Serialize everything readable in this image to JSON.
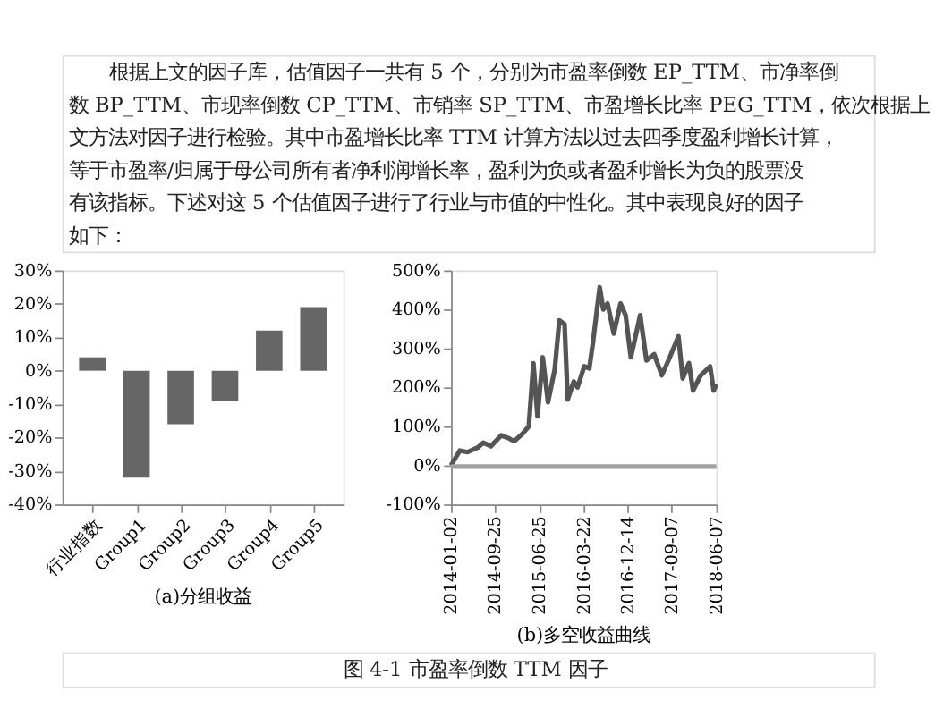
{
  "chart_data": [
    {
      "type": "bar",
      "title": "(a)分组收益",
      "annotations": [
        "根据上文的因子库，估值因子一共有 5 个，分别为市盈率倒数 EP_TTM、市净率倒",
        "数 BP_TTM、市现率倒数 CP_TTM、市销率 SP_TTM、市盈增长比率 PEG_TTM，依次根据上",
        "文方法对因子进行检验。其中市盈增长比率 TTM 计算方法以过去四季度盈利增长计算，",
        "等于市盈率/归属于母公司所有者净利润增长率，盈利为负或者盈利增长为负的股票没",
        "有该指标。下述对这 5 个估值因子进行了行业与市值的中性化。其中表现良好的因子",
        "如下："
      ],
      "categories": [
        "行业指数",
        "Group1",
        "Group2",
        "Group3",
        "Group4",
        "Group5"
      ],
      "values": [
        4,
        -32,
        -16,
        -9,
        12,
        19
      ],
      "color": "#666666",
      "ylim": [
        -40,
        30
      ],
      "yticks": [
        {
          "value": -40,
          "label": "-40%"
        },
        {
          "value": -30,
          "label": "-30%"
        },
        {
          "value": -20,
          "label": "-20%"
        },
        {
          "value": -10,
          "label": "-10%"
        },
        {
          "value": 0,
          "label": "0%"
        },
        {
          "value": 10,
          "label": "10%"
        },
        {
          "value": 20,
          "label": "20%"
        },
        {
          "value": 30,
          "label": "30%"
        }
      ],
      "grid": false
    },
    {
      "type": "line",
      "title": "(b)多空收益曲线",
      "annotations": [
        "图 4-1 市盈率倒数 TTM 因子"
      ],
      "xlim": [
        "2014-01-02",
        "2018-06-07"
      ],
      "xticks": [
        "2014-01-02",
        "2014-09-25",
        "2015-06-25",
        "2016-03-22",
        "2016-12-14",
        "2017-09-07",
        "2018-06-07"
      ],
      "ylim": [
        -100,
        500
      ],
      "yticks": [
        {
          "value": -100,
          "label": "-100%"
        },
        {
          "value": 0,
          "label": "0%"
        },
        {
          "value": 100,
          "label": "100%"
        },
        {
          "value": 200,
          "label": "200%"
        },
        {
          "value": 300,
          "label": "300%"
        },
        {
          "value": 400,
          "label": "400%"
        },
        {
          "value": 500,
          "label": "500%"
        }
      ],
      "grid": false,
      "marker": "none",
      "line_style": "solid",
      "series": [
        {
          "color": "#555555",
          "x": [
            "2014-01-02",
            "2014-02-25",
            "2014-04-13",
            "2014-06-15",
            "2014-07-17",
            "2014-09-02",
            "2014-11-04",
            "2014-12-22",
            "2015-01-22",
            "2015-03-11",
            "2015-04-21",
            "2015-05-19",
            "2015-06-13",
            "2015-07-15",
            "2015-08-16",
            "2015-09-26",
            "2015-10-24",
            "2015-11-25",
            "2015-12-14",
            "2016-01-20",
            "2016-02-12",
            "2016-03-24",
            "2016-04-24",
            "2016-05-16",
            "2016-06-26",
            "2016-07-18",
            "2016-08-13",
            "2016-09-20",
            "2016-10-31",
            "2016-12-01",
            "2017-01-02",
            "2017-02-28",
            "2017-04-07",
            "2017-05-24",
            "2017-07-10",
            "2017-08-27",
            "2017-10-19",
            "2017-11-14",
            "2017-12-22",
            "2018-01-16",
            "2018-03-04",
            "2018-04-30",
            "2018-05-22",
            "2018-06-07"
          ],
          "values": [
            0,
            38,
            34,
            46,
            58,
            49,
            77,
            69,
            62,
            80,
            100,
            262,
            126,
            277,
            162,
            246,
            372,
            362,
            169,
            215,
            200,
            254,
            249,
            315,
            457,
            400,
            415,
            338,
            415,
            385,
            277,
            385,
            269,
            285,
            231,
            277,
            331,
            223,
            262,
            192,
            231,
            254,
            192,
            208
          ]
        },
        {
          "color": "#a0a0a0",
          "x": [
            "2014-01-02",
            "2018-06-07"
          ],
          "values": [
            -3,
            -3
          ]
        }
      ]
    }
  ]
}
